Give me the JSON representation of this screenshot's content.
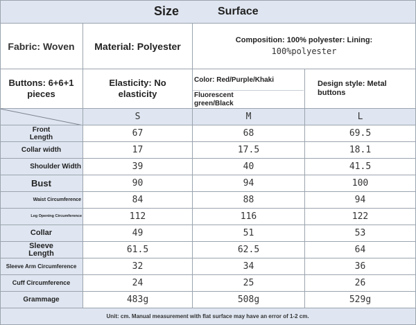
{
  "header": {
    "title": "Size",
    "subtitle": "Surface"
  },
  "specs": {
    "fabric": "Fabric: Woven",
    "material": "Material: Polyester",
    "composition_line1": "Composition: 100% polyester: Lining:",
    "composition_line2": "100%polyester",
    "buttons": "Buttons: 6+6+1 pieces",
    "elasticity": "Elasticity: No elasticity",
    "color_line1": "Color: Red/Purple/Khaki",
    "color_line2": "Fluorescent green/Black",
    "design": "Design style: Metal buttons"
  },
  "table": {
    "sizes": [
      "S",
      "M",
      "L"
    ],
    "rows": [
      {
        "label": "Front Length",
        "values": [
          "67",
          "68",
          "69.5"
        ]
      },
      {
        "label": "Collar width",
        "values": [
          "17",
          "17.5",
          "18.1"
        ]
      },
      {
        "label": "Shoulder Width",
        "values": [
          "39",
          "40",
          "41.5"
        ]
      },
      {
        "label": "Bust",
        "values": [
          "90",
          "94",
          "100"
        ]
      },
      {
        "label": "Waist Circumference",
        "values": [
          "84",
          "88",
          "94"
        ]
      },
      {
        "label": "Leg Opening Circumference",
        "values": [
          "112",
          "116",
          "122"
        ]
      },
      {
        "label": "Collar",
        "values": [
          "49",
          "51",
          "53"
        ]
      },
      {
        "label": "Sleeve Length",
        "values": [
          "61.5",
          "62.5",
          "64"
        ]
      },
      {
        "label": "Sleeve Arm Circumference",
        "values": [
          "32",
          "34",
          "36"
        ]
      },
      {
        "label": "Cuff Circumference",
        "values": [
          "24",
          "25",
          "26"
        ]
      },
      {
        "label": "Grammage",
        "values": [
          "483g",
          "508g",
          "529g"
        ]
      }
    ]
  },
  "footer": {
    "note": "Unit: cm. Manual measurement with flat surface may have an error of 1-2 cm."
  }
}
